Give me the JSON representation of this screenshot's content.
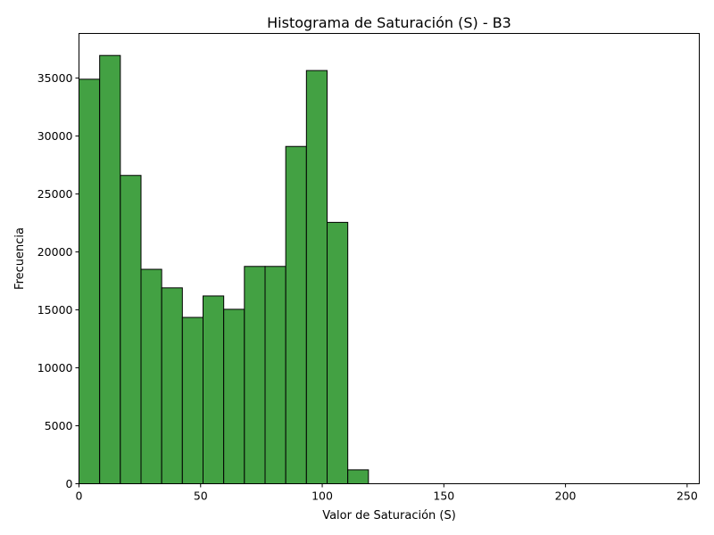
{
  "chart_data": {
    "type": "bar",
    "title": "Histograma de Saturación (S) - B3",
    "xlabel": "Valor de Saturación (S)",
    "ylabel": "Frecuencia",
    "xlim": [
      0,
      255
    ],
    "ylim": [
      0,
      38850
    ],
    "xticks": [
      0,
      50,
      100,
      150,
      200,
      250
    ],
    "yticks": [
      0,
      5000,
      10000,
      15000,
      20000,
      25000,
      30000,
      35000
    ],
    "bin_edges": [
      0,
      8.5,
      17,
      25.5,
      34,
      42.5,
      51,
      59.5,
      68,
      76.5,
      85,
      93.5,
      102,
      110.5,
      119
    ],
    "values": [
      34900,
      36950,
      26600,
      18500,
      16900,
      14350,
      16200,
      15050,
      18750,
      18750,
      29100,
      35650,
      22550,
      1200
    ],
    "bar_color": "#43a143",
    "edge_color": "#000000",
    "grid": false,
    "legend": "none"
  }
}
